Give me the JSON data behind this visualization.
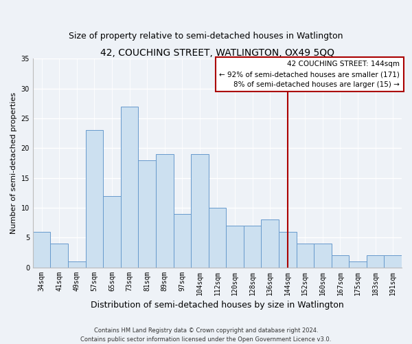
{
  "title": "42, COUCHING STREET, WATLINGTON, OX49 5QQ",
  "subtitle": "Size of property relative to semi-detached houses in Watlington",
  "xlabel": "Distribution of semi-detached houses by size in Watlington",
  "ylabel": "Number of semi-detached properties",
  "categories": [
    "34sqm",
    "41sqm",
    "49sqm",
    "57sqm",
    "65sqm",
    "73sqm",
    "81sqm",
    "89sqm",
    "97sqm",
    "104sqm",
    "112sqm",
    "120sqm",
    "128sqm",
    "136sqm",
    "144sqm",
    "152sqm",
    "160sqm",
    "167sqm",
    "175sqm",
    "183sqm",
    "191sqm"
  ],
  "values": [
    6,
    4,
    1,
    23,
    12,
    27,
    18,
    19,
    9,
    19,
    10,
    7,
    7,
    8,
    6,
    4,
    4,
    2,
    1,
    2,
    2
  ],
  "bar_color": "#cce0f0",
  "bar_edge_color": "#6699cc",
  "vline_x": 14,
  "vline_color": "#aa0000",
  "annotation_title": "42 COUCHING STREET: 144sqm",
  "annotation_line1": "← 92% of semi-detached houses are smaller (171)",
  "annotation_line2": "8% of semi-detached houses are larger (15) →",
  "annotation_box_color": "#ffffff",
  "annotation_border_color": "#aa0000",
  "ylim": [
    0,
    35
  ],
  "yticks": [
    0,
    5,
    10,
    15,
    20,
    25,
    30,
    35
  ],
  "footer1": "Contains HM Land Registry data © Crown copyright and database right 2024.",
  "footer2": "Contains public sector information licensed under the Open Government Licence v3.0.",
  "bg_color": "#eef2f7",
  "title_fontsize": 10,
  "subtitle_fontsize": 9,
  "xlabel_fontsize": 9,
  "ylabel_fontsize": 8,
  "tick_fontsize": 7,
  "footer_fontsize": 6,
  "annot_fontsize": 7.5
}
